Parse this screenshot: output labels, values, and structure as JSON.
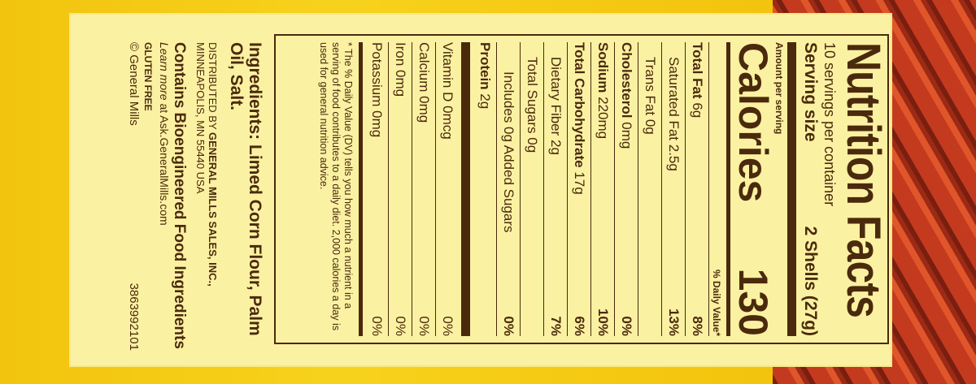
{
  "colors": {
    "background": "#f4c60f",
    "label": "#fbf1a2",
    "text": "#4a2a0c",
    "red_texture": "#c43a1e"
  },
  "nutrition": {
    "title": "Nutrition Facts",
    "servings": "10 servings per container",
    "serving_size_label": "Serving size",
    "serving_size_value": "2 Shells (27g)",
    "amount_per_serving": "Amount per serving",
    "calories_label": "Calories",
    "calories_value": "130",
    "dv_header": "% Daily Value*",
    "rows": [
      {
        "name": "Total Fat",
        "amount": "6g",
        "dv": "8%",
        "bold": true,
        "indent": 0
      },
      {
        "name": "Saturated Fat",
        "amount": "2.5g",
        "dv": "13%",
        "bold": false,
        "indent": 1
      },
      {
        "name": "Trans Fat",
        "amount": "0g",
        "dv": "",
        "bold": false,
        "indent": 1
      },
      {
        "name": "Cholesterol",
        "amount": "0mg",
        "dv": "0%",
        "bold": true,
        "indent": 0
      },
      {
        "name": "Sodium",
        "amount": "220mg",
        "dv": "10%",
        "bold": true,
        "indent": 0
      },
      {
        "name": "Total Carbohydrate",
        "amount": "17g",
        "dv": "6%",
        "bold": true,
        "indent": 0
      },
      {
        "name": "Dietary Fiber",
        "amount": "2g",
        "dv": "7%",
        "bold": false,
        "indent": 1
      },
      {
        "name": "Total Sugars",
        "amount": "0g",
        "dv": "",
        "bold": false,
        "indent": 1
      },
      {
        "name": "Includes 0g Added Sugars",
        "amount": "",
        "dv": "0%",
        "bold": false,
        "indent": 2
      },
      {
        "name": "Protein",
        "amount": "2g",
        "dv": "",
        "bold": true,
        "indent": 0
      }
    ],
    "vitamins": [
      {
        "name": "Vitamin D",
        "amount": "0mcg",
        "dv": "0%"
      },
      {
        "name": "Calcium",
        "amount": "0mg",
        "dv": "0%"
      },
      {
        "name": "Iron",
        "amount": "0mg",
        "dv": "0%"
      },
      {
        "name": "Potassium",
        "amount": "0mg",
        "dv": "0%"
      }
    ],
    "footnote": "* The % Daily Value (DV) tells you how much a nutrient in a serving of food contributes to a daily diet. 2,000 calories a day is used for general nutrition advice."
  },
  "ingredients": "Ingredients: Limed Corn Flour, Palm Oil, Salt.",
  "distributed_prefix": "DISTRIBUTED BY ",
  "distributor": "GENERAL MILLS SALES, INC.,",
  "address": "MINNEAPOLIS, MN 55440 USA",
  "bioengineered": "Contains Bioengineered Food Ingredients",
  "learn_more_prefix": "Learn more",
  "learn_more_suffix": " at Ask.GeneralMills.com",
  "gluten_free": "GLUTEN FREE",
  "copyright": "© General Mills",
  "code": "3863992101"
}
